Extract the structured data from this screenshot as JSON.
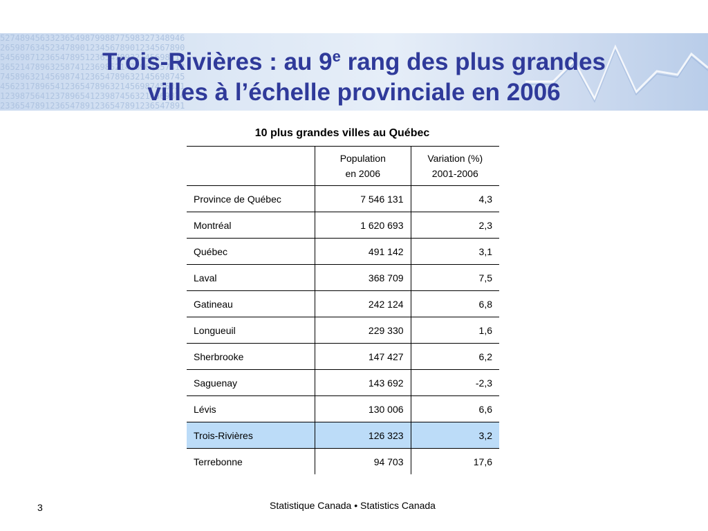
{
  "slide": {
    "title_part1": "Trois-Rivières : au 9",
    "title_sup": "e",
    "title_part2": " rang des plus grandes",
    "title_line2": "villes à l’échelle provinciale en 2006",
    "table_title": "10 plus grandes villes au Québec",
    "headers": {
      "population_line1": "Population",
      "population_line2": "en 2006",
      "variation_line1": "Variation (%)",
      "variation_line2": "2001-2006"
    },
    "rows": [
      {
        "name": "Province de Québec",
        "population": "7 546 131",
        "variation": "4,3"
      },
      {
        "name": "Montréal",
        "population": "1 620 693",
        "variation": "2,3"
      },
      {
        "name": "Québec",
        "population": "491 142",
        "variation": "3,1"
      },
      {
        "name": "Laval",
        "population": "368 709",
        "variation": "7,5"
      },
      {
        "name": "Gatineau",
        "population": "242 124",
        "variation": "6,8"
      },
      {
        "name": "Longueuil",
        "population": "229 330",
        "variation": "1,6"
      },
      {
        "name": "Sherbrooke",
        "population": "147 427",
        "variation": "6,2"
      },
      {
        "name": "Saguenay",
        "population": "143 692",
        "variation": "-2,3"
      },
      {
        "name": "Lévis",
        "population": "130 006",
        "variation": "6,6"
      },
      {
        "name": "Trois-Rivières",
        "population": "126 323",
        "variation": "3,2"
      },
      {
        "name": "Terrebonne",
        "population": "94 703",
        "variation": "17,6"
      }
    ],
    "highlight_row": "Trois-Rivières",
    "highlight_color": "#bcdcf8",
    "title_color": "#2f3a9a",
    "page_number": "3",
    "footer": "Statistique Canada • Statistics Canada"
  }
}
